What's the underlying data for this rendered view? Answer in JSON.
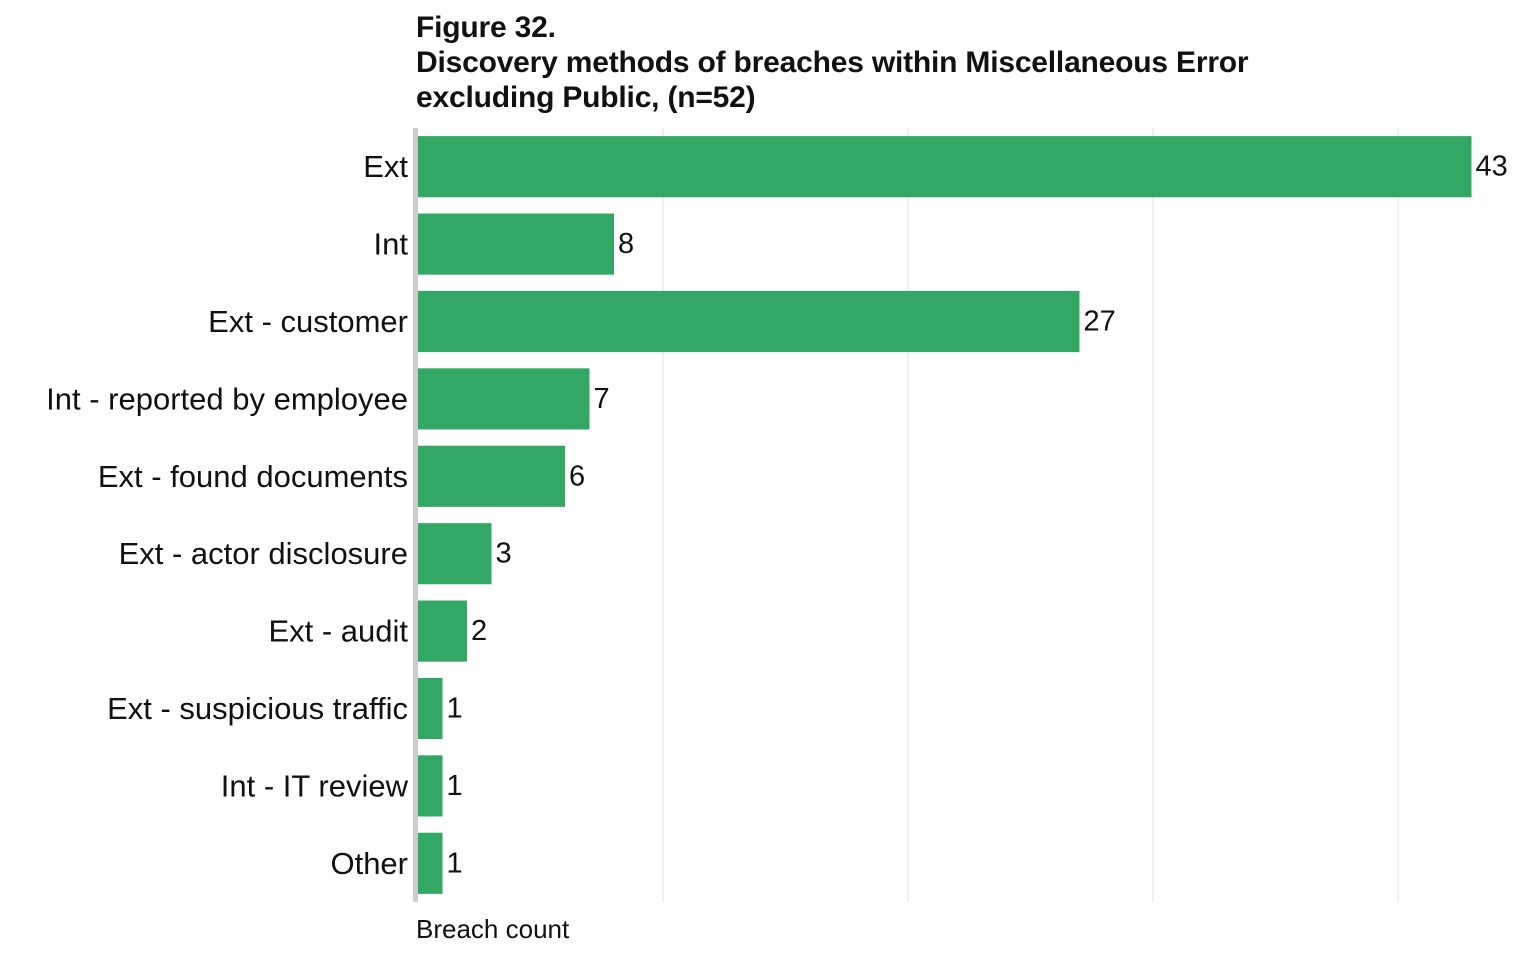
{
  "figure": {
    "number": "Figure 32.",
    "title_line1": "Discovery methods of breaches within Miscellaneous Error",
    "title_line2": "excluding Public, (n=52)"
  },
  "chart_data": {
    "type": "bar",
    "orientation": "horizontal",
    "title": "Figure 32. Discovery methods of breaches within Miscellaneous Error excluding Public, (n=52)",
    "xlabel": "Breach count",
    "ylabel": "",
    "categories": [
      "Ext",
      "Int",
      "Ext - customer",
      "Int - reported by employee",
      "Ext - found documents",
      "Ext - actor disclosure",
      "Ext - audit",
      "Ext - suspicious traffic",
      "Int - IT review",
      "Other"
    ],
    "values": [
      43,
      8,
      27,
      7,
      6,
      3,
      2,
      1,
      1,
      1
    ],
    "xlim": [
      0,
      44
    ],
    "grid": true,
    "data_labels": true,
    "legend": "none",
    "colors": {
      "bar": "#33a864",
      "grid": "#e2e2e2",
      "axis": "#cccccc",
      "text": "#111111"
    }
  }
}
